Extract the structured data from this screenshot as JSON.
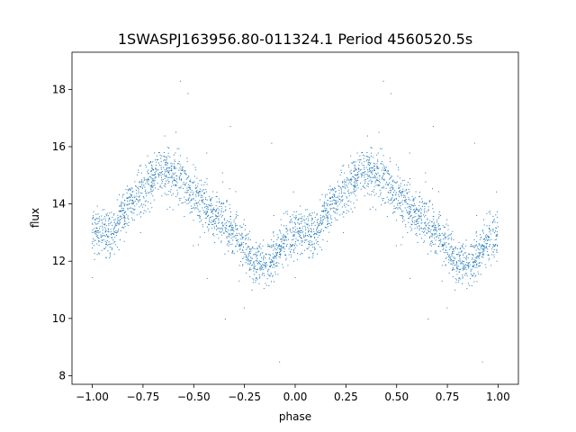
{
  "chart_data": {
    "type": "scatter",
    "title": "1SWASPJ163956.80-011324.1 Period 4560520.5s",
    "xlabel": "phase",
    "ylabel": "flux",
    "xlim": [
      -1.1,
      1.1
    ],
    "ylim": [
      7.7,
      19.3
    ],
    "xticks": [
      -1.0,
      -0.75,
      -0.5,
      -0.25,
      0.0,
      0.25,
      0.5,
      0.75,
      1.0
    ],
    "xtick_labels": [
      "−1.00",
      "−0.75",
      "−0.50",
      "−0.25",
      "0.00",
      "0.25",
      "0.50",
      "0.75",
      "1.00"
    ],
    "yticks": [
      8,
      10,
      12,
      14,
      16,
      18
    ],
    "ytick_labels": [
      "8",
      "10",
      "12",
      "14",
      "16",
      "18"
    ],
    "grid": false,
    "marker_color": "#1f77b4",
    "light_curve_trend": {
      "phase": [
        0.0,
        0.05,
        0.1,
        0.15,
        0.2,
        0.25,
        0.3,
        0.35,
        0.4,
        0.45,
        0.5,
        0.55,
        0.6,
        0.65,
        0.7,
        0.75,
        0.8,
        0.85,
        0.9,
        0.95,
        1.0
      ],
      "flux": [
        13.0,
        12.9,
        13.1,
        13.6,
        14.1,
        14.5,
        14.9,
        15.2,
        15.1,
        14.8,
        14.3,
        14.0,
        13.6,
        13.4,
        13.0,
        12.5,
        11.9,
        11.8,
        12.2,
        12.8,
        13.0
      ]
    }
  }
}
